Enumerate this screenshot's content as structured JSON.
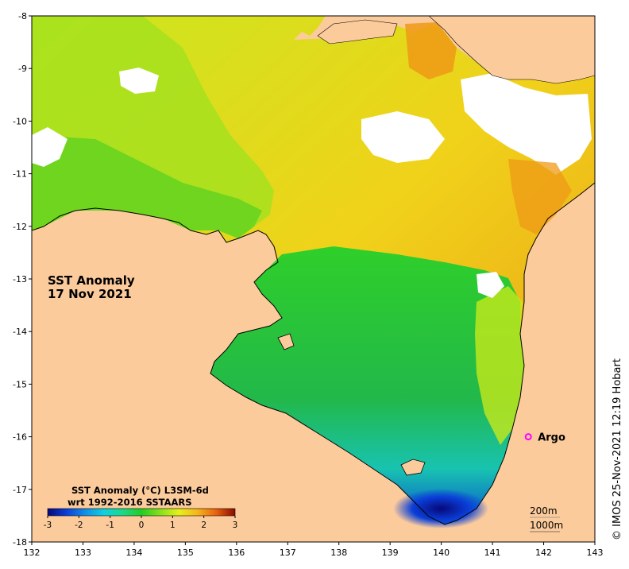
{
  "map": {
    "title_line1": "SST Anomaly",
    "title_line2": "17 Nov 2021",
    "x_ticks": [
      "132",
      "133",
      "134",
      "135",
      "136",
      "137",
      "138",
      "139",
      "140",
      "141",
      "142",
      "143"
    ],
    "y_ticks": [
      "-8",
      "-9",
      "-10",
      "-11",
      "-12",
      "-13",
      "-14",
      "-15",
      "-16",
      "-17",
      "-18"
    ],
    "lon_range": [
      132,
      143
    ],
    "lat_range": [
      -18,
      -8
    ],
    "land_color": "#fccb9c",
    "no_data_color": "#ffffff"
  },
  "marker": {
    "label": "Argo",
    "color": "#ff00ff",
    "lon": 141.7,
    "lat": -16.0
  },
  "colorbar": {
    "title_line1": "SST Anomaly (°C) L3SM-6d",
    "title_line2": "wrt 1992-2016 SSTAARS",
    "ticks": [
      "-3",
      "-2",
      "-1",
      "0",
      "1",
      "2",
      "3"
    ],
    "colors": [
      "#08087a",
      "#0a3fd8",
      "#0fb3e8",
      "#19d9a0",
      "#22cc22",
      "#86e01c",
      "#e6f01a",
      "#f5c51b",
      "#ee8a10",
      "#d9460a",
      "#8b0a00"
    ]
  },
  "depth_legend": {
    "line1": "200m",
    "line2": "1000m"
  },
  "copyright": "© IMOS 25-Nov-2021 12:19 Hobart"
}
